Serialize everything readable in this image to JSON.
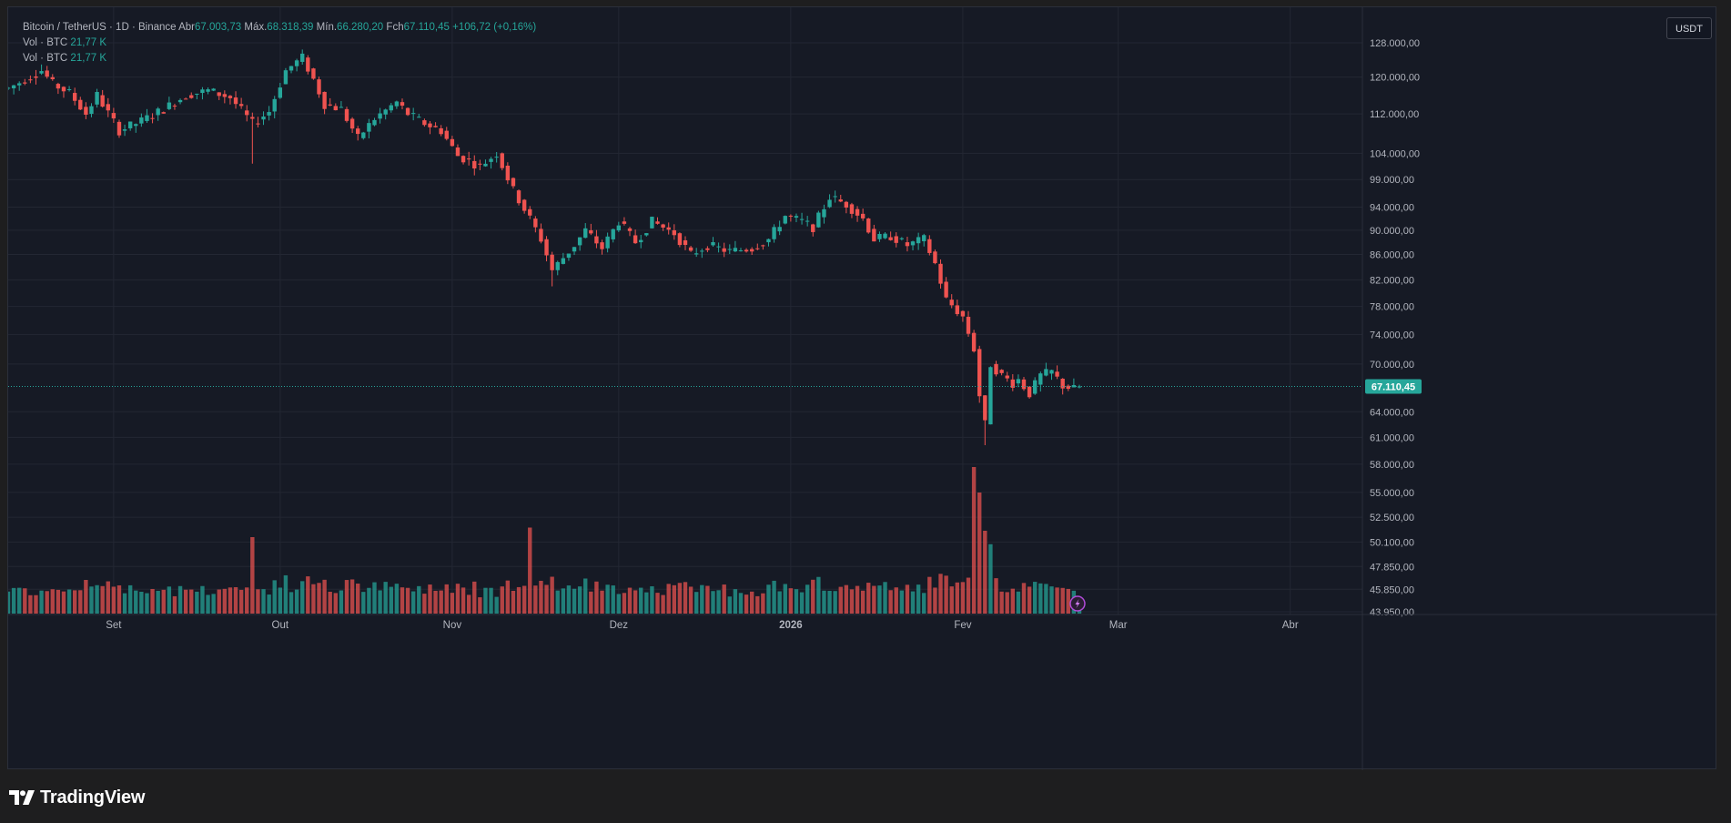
{
  "legend": {
    "symbol": "Bitcoin / TetherUS · 1D · Binance",
    "open_label": "Abr",
    "open": "67.003,73",
    "high_label": "Máx.",
    "high": "68.318,39",
    "low_label": "Mín.",
    "low": "66.280,20",
    "close_label": "Fch",
    "close": "67.110,45",
    "change": "+106,72 (+0,16%)",
    "vol_rows": [
      {
        "label": "Vol · BTC",
        "value": "21,77 K"
      },
      {
        "label": "Vol · BTC",
        "value": "21,77 K"
      }
    ]
  },
  "unit": "USDT",
  "brand": {
    "name": "TradingView"
  },
  "colors": {
    "up": "#26a69a",
    "down": "#ef5350",
    "background": "#161a25",
    "grid": "#232733",
    "text": "#d1d4dc",
    "price_tag": "#26a69a"
  },
  "chart_data": {
    "type": "candlestick",
    "title": "Bitcoin / TetherUS · 1D · Binance",
    "y_scale": "log",
    "ylim": [
      43950,
      128000
    ],
    "y_ticks": [
      {
        "value": 128000,
        "label": "128.000,00"
      },
      {
        "value": 120000,
        "label": "120.000,00"
      },
      {
        "value": 112000,
        "label": "112.000,00"
      },
      {
        "value": 104000,
        "label": "104.000,00"
      },
      {
        "value": 99000,
        "label": "99.000,00"
      },
      {
        "value": 94000,
        "label": "94.000,00"
      },
      {
        "value": 90000,
        "label": "90.000,00"
      },
      {
        "value": 86000,
        "label": "86.000,00"
      },
      {
        "value": 82000,
        "label": "82.000,00"
      },
      {
        "value": 78000,
        "label": "78.000,00"
      },
      {
        "value": 74000,
        "label": "74.000,00"
      },
      {
        "value": 70000,
        "label": "70.000,00"
      },
      {
        "value": 64000,
        "label": "64.000,00"
      },
      {
        "value": 61000,
        "label": "61.000,00"
      },
      {
        "value": 58000,
        "label": "58.000,00"
      },
      {
        "value": 55000,
        "label": "55.000,00"
      },
      {
        "value": 52500,
        "label": "52.500,00"
      },
      {
        "value": 50100,
        "label": "50.100,00"
      },
      {
        "value": 47850,
        "label": "47.850,00"
      },
      {
        "value": 45850,
        "label": "45.850,00"
      },
      {
        "value": 43950,
        "label": "43.950,00"
      }
    ],
    "x_ticks": [
      {
        "index": 17,
        "label": "Set"
      },
      {
        "index": 47,
        "label": "Out"
      },
      {
        "index": 78,
        "label": "Nov"
      },
      {
        "index": 108,
        "label": "Dez"
      },
      {
        "index": 139,
        "label": "2026"
      },
      {
        "index": 170,
        "label": "Fev"
      },
      {
        "index": 198,
        "label": "Mar"
      },
      {
        "index": 229,
        "label": "Abr"
      }
    ],
    "x_range_days": [
      -2,
      242
    ],
    "last_price": {
      "value": 67110.45,
      "label": "67.110,45"
    },
    "close_anchors": [
      [
        -2,
        117500
      ],
      [
        4,
        121500
      ],
      [
        6,
        118500
      ],
      [
        9,
        116500
      ],
      [
        12,
        112000
      ],
      [
        14,
        116000
      ],
      [
        18,
        108500
      ],
      [
        22,
        110500
      ],
      [
        26,
        113000
      ],
      [
        30,
        116000
      ],
      [
        34,
        117000
      ],
      [
        38,
        115500
      ],
      [
        42,
        110000
      ],
      [
        45,
        112500
      ],
      [
        48,
        121500
      ],
      [
        51,
        124500
      ],
      [
        53,
        119500
      ],
      [
        55,
        114000
      ],
      [
        58,
        113000
      ],
      [
        61,
        107000
      ],
      [
        64,
        111000
      ],
      [
        68,
        114500
      ],
      [
        70,
        112000
      ],
      [
        73,
        110000
      ],
      [
        76,
        108500
      ],
      [
        79,
        103500
      ],
      [
        83,
        101500
      ],
      [
        86,
        104000
      ],
      [
        89,
        97000
      ],
      [
        92,
        92000
      ],
      [
        94,
        88500
      ],
      [
        96,
        83500
      ],
      [
        100,
        87500
      ],
      [
        102,
        90000
      ],
      [
        105,
        87000
      ],
      [
        108,
        91500
      ],
      [
        111,
        88000
      ],
      [
        114,
        91500
      ],
      [
        118,
        89500
      ],
      [
        121,
        86000
      ],
      [
        124,
        87500
      ],
      [
        128,
        86500
      ],
      [
        132,
        87000
      ],
      [
        135,
        88500
      ],
      [
        138,
        92500
      ],
      [
        141,
        91500
      ],
      [
        143,
        90500
      ],
      [
        146,
        95800
      ],
      [
        149,
        94500
      ],
      [
        152,
        92000
      ],
      [
        154,
        88500
      ],
      [
        157,
        89000
      ],
      [
        160,
        87500
      ],
      [
        163,
        88500
      ],
      [
        165,
        84500
      ],
      [
        167,
        79000
      ],
      [
        170,
        76500
      ],
      [
        172,
        72000
      ],
      [
        173,
        66000
      ],
      [
        174,
        62500
      ],
      [
        175,
        70000
      ],
      [
        177,
        68500
      ],
      [
        179,
        67500
      ],
      [
        180,
        68000
      ],
      [
        182,
        66200
      ],
      [
        184,
        68500
      ],
      [
        186,
        69000
      ],
      [
        188,
        67200
      ],
      [
        190,
        66800
      ],
      [
        191,
        67110.45
      ]
    ],
    "ohlc_note": "Daily candles from the close path; volume bars drawn on a separate low band (Vol BTC, last 21,77 K)"
  }
}
